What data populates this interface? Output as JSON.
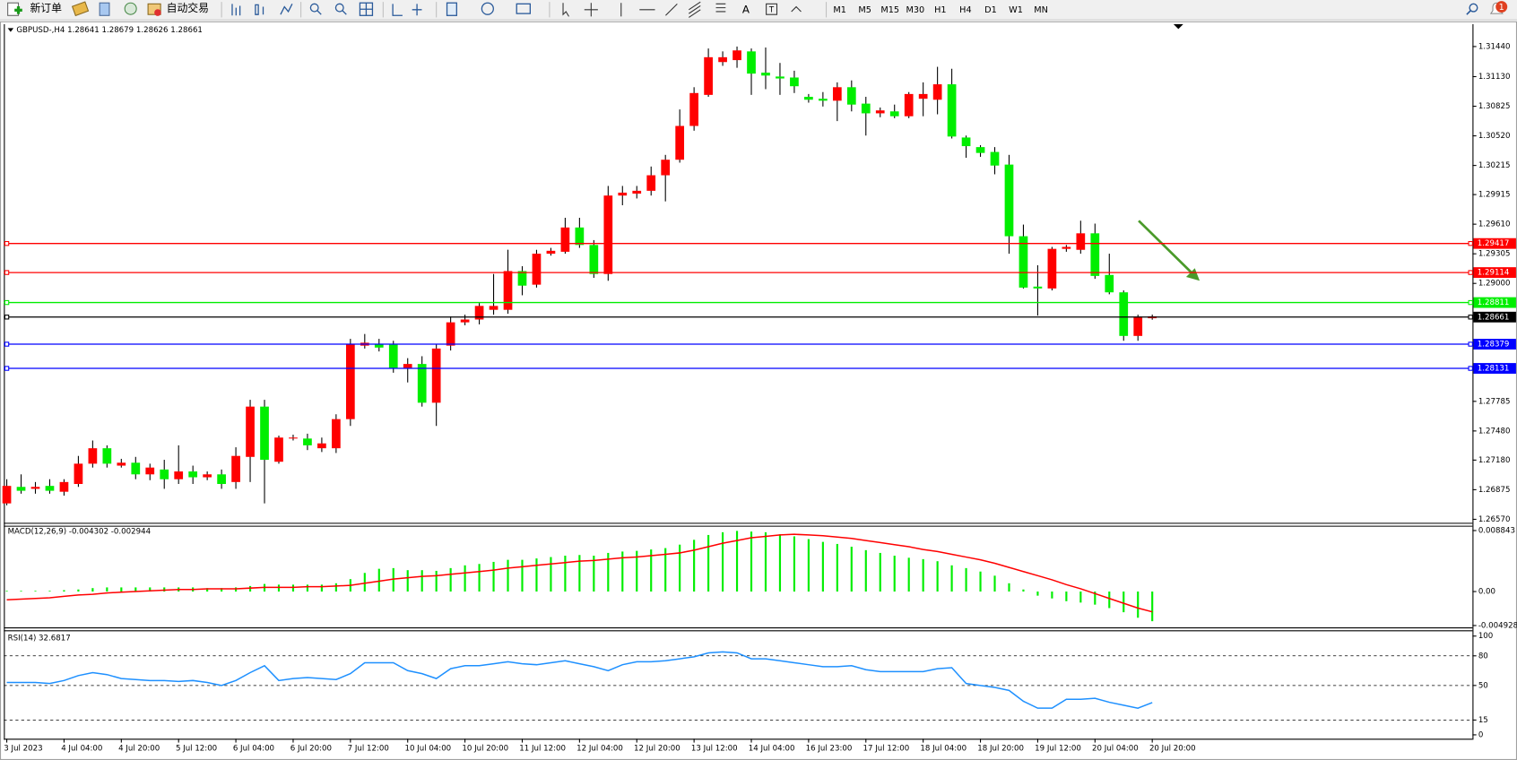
{
  "toolbar": {
    "new_order": "新订单",
    "auto_trading": "自动交易",
    "text_tool": "A",
    "label_tool": "T",
    "periods": [
      "M1",
      "M5",
      "M15",
      "M30",
      "H1",
      "H4",
      "D1",
      "W1",
      "MN"
    ],
    "notifications": "1"
  },
  "chart_data": [
    {
      "type": "candlestick",
      "title": "GBPUSD-,H4  1.28641 1.28679 1.28626 1.28661",
      "categories": [
        "3 Jul 2023",
        null,
        null,
        null,
        "4 Jul 04:00",
        null,
        null,
        null,
        "4 Jul 20:00",
        null,
        null,
        null,
        "5 Jul 12:00",
        null,
        null,
        null,
        "6 Jul 04:00",
        null,
        null,
        null,
        "6 Jul 20:00",
        null,
        null,
        null,
        "7 Jul 12:00",
        null,
        null,
        null,
        "10 Jul 04:00",
        null,
        null,
        null,
        "10 Jul 20:00",
        null,
        null,
        null,
        "11 Jul 12:00",
        null,
        null,
        null,
        "12 Jul 04:00",
        null,
        null,
        null,
        "12 Jul 20:00",
        null,
        null,
        null,
        "13 Jul 12:00",
        null,
        null,
        null,
        "14 Jul 04:00",
        null,
        null,
        null,
        "16 Jul 23:00",
        null,
        null,
        null,
        "17 Jul 12:00",
        null,
        null,
        null,
        "18 Jul 04:00",
        null,
        null,
        null,
        "18 Jul 20:00",
        null,
        null,
        null,
        "19 Jul 12:00",
        null,
        null,
        null,
        "20 Jul 04:00",
        null,
        null,
        null,
        "20 Jul 20:00"
      ],
      "open": [
        1.26734,
        1.26904,
        1.26884,
        1.26914,
        1.26854,
        1.26934,
        1.27143,
        1.27302,
        1.27123,
        1.27153,
        1.27033,
        1.27083,
        1.26983,
        1.27063,
        1.27003,
        1.27033,
        1.26954,
        1.27213,
        1.27731,
        1.27163,
        1.27402,
        1.27402,
        1.27302,
        1.27302,
        1.27602,
        1.28359,
        1.28379,
        1.28369,
        1.2813,
        1.2817,
        1.27771,
        1.28359,
        1.28599,
        1.28628,
        1.28728,
        1.28728,
        1.29127,
        1.28987,
        1.29306,
        1.29326,
        1.29576,
        1.29396,
        1.29097,
        1.29905,
        1.29925,
        1.29954,
        1.30114,
        1.30274,
        1.30622,
        1.30942,
        1.3128,
        1.313,
        1.3139,
        1.31171,
        1.31131,
        1.31121,
        1.30922,
        1.30902,
        1.30882,
        1.31021,
        1.30852,
        1.30752,
        1.30772,
        1.30722,
        1.30902,
        1.30892,
        1.31051,
        1.30503,
        1.30404,
        1.30354,
        1.30224,
        1.29486,
        1.28967,
        1.28948,
        1.29356,
        1.29346,
        1.29516,
        1.29087,
        1.28908,
        1.28459,
        1.28641
      ],
      "high": [
        1.26983,
        1.27033,
        1.26954,
        1.26983,
        1.26983,
        1.27223,
        1.27382,
        1.27332,
        1.27193,
        1.27213,
        1.27143,
        1.27183,
        1.27332,
        1.27123,
        1.27063,
        1.27083,
        1.27312,
        1.27801,
        1.27801,
        1.27432,
        1.27442,
        1.27452,
        1.27412,
        1.27652,
        1.28429,
        1.28479,
        1.28429,
        1.28409,
        1.2823,
        1.2825,
        1.28379,
        1.28659,
        1.28678,
        1.28798,
        1.29097,
        1.29347,
        1.29177,
        1.29346,
        1.29366,
        1.29676,
        1.29676,
        1.29446,
        1.30004,
        1.30004,
        1.30004,
        1.30204,
        1.30324,
        1.30792,
        1.31021,
        1.3142,
        1.3139,
        1.3144,
        1.3142,
        1.3143,
        1.31271,
        1.31191,
        1.30951,
        1.30971,
        1.31071,
        1.31091,
        1.30922,
        1.30812,
        1.30842,
        1.30971,
        1.31071,
        1.31231,
        1.31211,
        1.30523,
        1.30424,
        1.30404,
        1.30324,
        1.29606,
        1.29187,
        1.29376,
        1.29396,
        1.29646,
        1.29616,
        1.29306,
        1.28928,
        1.28678,
        1.28679
      ],
      "low": [
        1.26714,
        1.26834,
        1.26834,
        1.26834,
        1.26814,
        1.26904,
        1.27103,
        1.27103,
        1.27103,
        1.26983,
        1.26973,
        1.26884,
        1.26934,
        1.26934,
        1.26973,
        1.26884,
        1.26884,
        1.26954,
        1.26734,
        1.27143,
        1.27382,
        1.27283,
        1.27263,
        1.27253,
        1.27532,
        1.28329,
        1.28299,
        1.2808,
        1.2798,
        1.27731,
        1.27532,
        1.28309,
        1.28569,
        1.28578,
        1.28678,
        1.28688,
        1.28878,
        1.28957,
        1.29286,
        1.29306,
        1.29366,
        1.29057,
        1.29027,
        1.29805,
        1.29875,
        1.29905,
        1.29845,
        1.30244,
        1.30573,
        1.30922,
        1.31241,
        1.31221,
        1.30942,
        1.31001,
        1.30942,
        1.30961,
        1.30862,
        1.30822,
        1.30672,
        1.30772,
        1.30523,
        1.30712,
        1.30702,
        1.30702,
        1.30722,
        1.30742,
        1.30493,
        1.30294,
        1.30304,
        1.30124,
        1.29306,
        1.28948,
        1.28668,
        1.28928,
        1.29326,
        1.29306,
        1.29047,
        1.28888,
        1.28409,
        1.28409,
        1.28626
      ],
      "close": [
        1.26914,
        1.26864,
        1.26904,
        1.26864,
        1.26954,
        1.27143,
        1.27302,
        1.27143,
        1.27153,
        1.27033,
        1.27103,
        1.26983,
        1.27063,
        1.27003,
        1.27033,
        1.26934,
        1.27223,
        1.27731,
        1.27183,
        1.27412,
        1.27412,
        1.27332,
        1.27352,
        1.27602,
        1.28379,
        1.28389,
        1.28339,
        1.2813,
        1.2817,
        1.27771,
        1.28329,
        1.28599,
        1.28628,
        1.28768,
        1.28768,
        1.29127,
        1.28977,
        1.29306,
        1.29336,
        1.29576,
        1.29396,
        1.29097,
        1.29905,
        1.29935,
        1.29954,
        1.30114,
        1.30274,
        1.30622,
        1.30961,
        1.3133,
        1.3133,
        1.314,
        1.31161,
        1.31141,
        1.31111,
        1.31031,
        1.30892,
        1.30882,
        1.31021,
        1.30842,
        1.30752,
        1.30782,
        1.30722,
        1.30951,
        1.30951,
        1.31051,
        1.30513,
        1.30414,
        1.30344,
        1.30214,
        1.29486,
        1.28957,
        1.28948,
        1.29356,
        1.29376,
        1.29516,
        1.29077,
        1.28908,
        1.28459,
        1.28658,
        1.28661
      ],
      "up_color": "#ff0000",
      "down_color": "#00ee00",
      "wick_color": "#000000",
      "ylim": [
        1.26534,
        1.3167
      ],
      "yticks": [
        {
          "value": 1.3144,
          "label": "1.31440"
        },
        {
          "value": 1.3113,
          "label": "1.31130"
        },
        1.30825,
        {
          "value": 1.3052,
          "label": "1.30520"
        },
        1.30215,
        1.29915,
        {
          "value": 1.2961,
          "label": "1.29610"
        },
        1.29305,
        {
          "value": 1.29,
          "label": "1.29000"
        },
        1.27785,
        {
          "value": 1.2748,
          "label": "1.27480"
        },
        {
          "value": 1.2718,
          "label": "1.27180"
        },
        1.26875,
        {
          "value": 1.2657,
          "label": "1.26570"
        }
      ],
      "hlines": [
        {
          "value": 1.29417,
          "color": "#ff0000"
        },
        {
          "value": 1.29114,
          "color": "#ff0000"
        },
        {
          "value": 1.28811,
          "color": "#00ee00"
        },
        {
          "value": 1.28661,
          "color": "#000000"
        },
        {
          "value": 1.28379,
          "color": "#0000ff"
        },
        {
          "value": 1.28131,
          "color": "#0000ff"
        }
      ]
    },
    {
      "type": "macd",
      "title": "MACD(12,26,9) -0.004302 -0.002944",
      "series": [
        {
          "style": "histogram",
          "color": "#00ee00",
          "values": [
            0.0001,
            0.0001,
            0.0001,
            0.0001,
            0.0002,
            0.0003,
            0.0005,
            0.0006,
            0.0006,
            0.0006,
            0.0006,
            0.0006,
            0.0006,
            0.0006,
            0.0005,
            0.0005,
            0.0006,
            0.0008,
            0.0011,
            0.001,
            0.001,
            0.001,
            0.001,
            0.0012,
            0.0018,
            0.0027,
            0.0033,
            0.0034,
            0.0031,
            0.0031,
            0.003,
            0.0034,
            0.0038,
            0.004,
            0.0043,
            0.0046,
            0.0046,
            0.0048,
            0.005,
            0.0052,
            0.0053,
            0.0052,
            0.0056,
            0.0058,
            0.0059,
            0.0061,
            0.0063,
            0.0068,
            0.0075,
            0.0082,
            0.0086,
            0.0088,
            0.0087,
            0.0086,
            0.0083,
            0.008,
            0.0076,
            0.0072,
            0.0069,
            0.0065,
            0.006,
            0.0056,
            0.0052,
            0.0049,
            0.0047,
            0.0044,
            0.0038,
            0.0034,
            0.0029,
            0.0023,
            0.0012,
            0.0003,
            -0.0006,
            -0.001,
            -0.0014,
            -0.0016,
            -0.0019,
            -0.0024,
            -0.003,
            -0.0038,
            -0.004302
          ]
        },
        {
          "style": "line",
          "color": "#ff0000",
          "values": [
            -0.0012,
            -0.0011,
            -0.001,
            -0.0009,
            -0.0007,
            -0.0005,
            -0.0004,
            -0.0002,
            -0.0001,
            0,
            0.0001,
            0.0002,
            0.0003,
            0.0003,
            0.0004,
            0.0004,
            0.0004,
            0.0005,
            0.0006,
            0.0006,
            0.0006,
            0.0007,
            0.0007,
            0.0008,
            0.0009,
            0.0012,
            0.0015,
            0.0018,
            0.002,
            0.0022,
            0.0023,
            0.0025,
            0.0027,
            0.0029,
            0.0031,
            0.0034,
            0.0036,
            0.0038,
            0.004,
            0.0042,
            0.0044,
            0.0045,
            0.0047,
            0.0049,
            0.005,
            0.0052,
            0.0054,
            0.0056,
            0.006,
            0.0065,
            0.007,
            0.0074,
            0.0078,
            0.008,
            0.0082,
            0.0083,
            0.0082,
            0.0081,
            0.0079,
            0.0077,
            0.0074,
            0.0071,
            0.0068,
            0.0065,
            0.0061,
            0.0058,
            0.0054,
            0.005,
            0.0046,
            0.0041,
            0.0035,
            0.0029,
            0.0023,
            0.0017,
            0.001,
            0.0004,
            -0.0003,
            -0.001,
            -0.0017,
            -0.0024,
            -0.002944
          ]
        }
      ],
      "ylim": [
        -0.005194,
        0.009405
      ],
      "yticks": [
        0.008843,
        {
          "value": 0,
          "label": "0.00"
        },
        -0.004928
      ]
    },
    {
      "type": "line",
      "title": "RSI(14) 32.6817",
      "color": "#1e90ff",
      "values": [
        53,
        53,
        53,
        52,
        55,
        60,
        63,
        61,
        57,
        56,
        55,
        55,
        54,
        55,
        53,
        50,
        55,
        63,
        70,
        55,
        57,
        58,
        57,
        56,
        62,
        73,
        73,
        73,
        65,
        62,
        57,
        67,
        70,
        70,
        72,
        74,
        72,
        71,
        73,
        75,
        72,
        69,
        65,
        71,
        74,
        74,
        75,
        77,
        79,
        83,
        84,
        83,
        77,
        77,
        75,
        73,
        71,
        69,
        69,
        70,
        66,
        64,
        64,
        64,
        64,
        67,
        68,
        52,
        50,
        48,
        45,
        34,
        27,
        27,
        36,
        36,
        37,
        33,
        30,
        27,
        32.68
      ],
      "ylim": [
        -3.9,
        104.9
      ],
      "yticks": [
        100,
        80,
        50,
        15,
        0
      ],
      "levels": [
        80,
        50,
        15
      ]
    }
  ]
}
